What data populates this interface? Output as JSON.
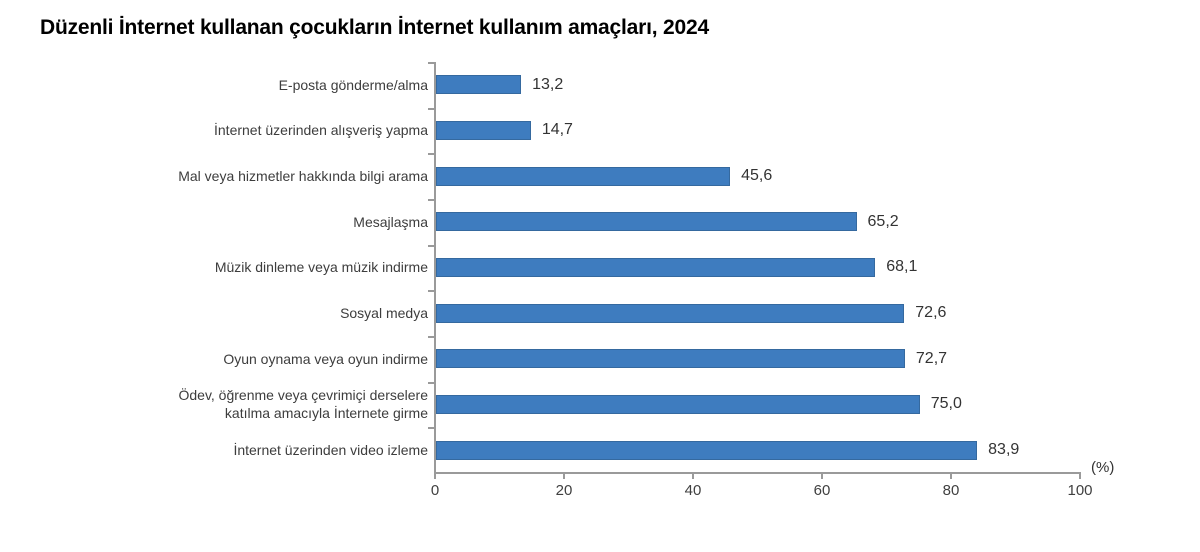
{
  "title": "Düzenli İnternet kullanan çocukların İnternet kullanım amaçları, 2024",
  "chart_data": {
    "type": "bar",
    "orientation": "horizontal",
    "title": "Düzenli İnternet kullanan çocukların İnternet kullanım amaçları, 2024",
    "categories": [
      "E-posta gönderme/alma",
      "İnternet üzerinden alışveriş yapma",
      "Mal veya hizmetler hakkında bilgi arama",
      "Mesajlaşma",
      "Müzik dinleme veya müzik indirme",
      "Sosyal medya",
      "Oyun oynama veya oyun indirme",
      "Ödev, öğrenme veya çevrimiçi derselere\nkatılma amacıyla İnternete girme",
      "İnternet üzerinden video izleme"
    ],
    "values": [
      13.2,
      14.7,
      45.6,
      65.2,
      68.1,
      72.6,
      72.7,
      75.0,
      83.9
    ],
    "value_labels": [
      "13,2",
      "14,7",
      "45,6",
      "65,2",
      "68,1",
      "72,6",
      "72,7",
      "75,0",
      "83,9"
    ],
    "x_ticks": [
      0,
      20,
      40,
      60,
      80,
      100
    ],
    "x_tick_labels": [
      "0",
      "20",
      "40",
      "60",
      "80",
      "100"
    ],
    "xlim": [
      0,
      100
    ],
    "unit_label": "(%)",
    "grid": false,
    "legend": "none",
    "bar_color": "#3e7cbf",
    "axis_color": "#9a9a9a"
  }
}
